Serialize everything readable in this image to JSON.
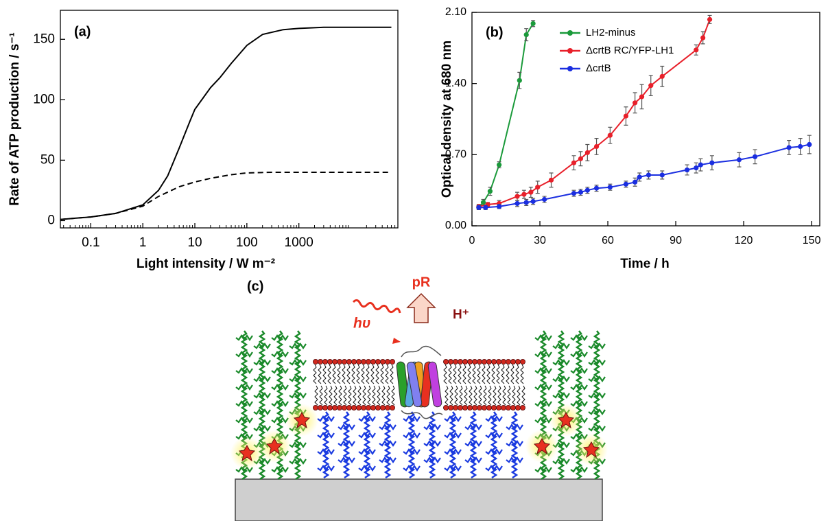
{
  "chart_data": [
    {
      "type": "line",
      "panel_label": "(a)",
      "x_label": "Light intensity / W m⁻²",
      "y_label": "Rate of ATP production / s⁻¹",
      "xscale": "log",
      "xlim": [
        0.026,
        80000
      ],
      "ylim": [
        -6,
        174
      ],
      "xticks": [
        0.1,
        1,
        10,
        100,
        1000
      ],
      "yticks": [
        0,
        50,
        100,
        150
      ],
      "series": [
        {
          "color": "#000000",
          "dash": false,
          "x": [
            0.026,
            0.05,
            0.1,
            0.3,
            1,
            2,
            3,
            5,
            8,
            10,
            20,
            30,
            50,
            100,
            200,
            500,
            1000,
            3000,
            10000,
            60000
          ],
          "values": [
            1,
            2,
            3,
            6,
            13,
            25,
            37,
            60,
            82,
            92,
            110,
            118,
            130,
            145,
            154,
            158,
            159,
            160,
            160,
            160
          ]
        },
        {
          "color": "#000000",
          "dash": true,
          "x": [
            0.026,
            0.05,
            0.1,
            0.3,
            1,
            2,
            5,
            10,
            20,
            50,
            100,
            300,
            1000,
            10000,
            60000
          ],
          "values": [
            1,
            2,
            3,
            6,
            12,
            20,
            28,
            32,
            35,
            38,
            39.5,
            40,
            40,
            40,
            40
          ]
        }
      ]
    },
    {
      "type": "line",
      "panel_label": "(b)",
      "x_label": "Time / h",
      "y_label": "Optical density at 680 nm",
      "legend": "upper left",
      "xlim": [
        0,
        153.6
      ],
      "ylim": [
        0,
        2.1
      ],
      "xticks": [
        0,
        30,
        60,
        90,
        120,
        150
      ],
      "yticks": [
        {
          "value": 0,
          "label": "0.00"
        },
        {
          "value": 0.7,
          "label": "0.70"
        },
        {
          "value": 1.4,
          "label": "1.40"
        },
        {
          "value": 2.1,
          "label": "2.10"
        }
      ],
      "series": [
        {
          "name": "LH2-minus",
          "color": "#1a9a3a",
          "x": [
            3,
            5,
            8,
            12,
            21,
            24,
            27
          ],
          "values": [
            0.18,
            0.23,
            0.34,
            0.6,
            1.43,
            1.88,
            1.99
          ],
          "errors": [
            0.02,
            0.03,
            0.04,
            0.03,
            0.08,
            0.06,
            0.03
          ]
        },
        {
          "name": "ΔcrtB RC/YFP-LH1",
          "color": "#e8202a",
          "x": [
            3,
            7,
            12,
            20,
            23,
            26,
            29,
            35,
            45,
            48,
            51,
            55,
            61,
            68,
            72,
            75,
            79,
            84,
            99,
            102,
            105
          ],
          "values": [
            0.19,
            0.21,
            0.22,
            0.29,
            0.31,
            0.33,
            0.38,
            0.45,
            0.62,
            0.66,
            0.72,
            0.78,
            0.89,
            1.08,
            1.21,
            1.27,
            1.38,
            1.47,
            1.73,
            1.85,
            2.03
          ],
          "errors": [
            0.02,
            0.02,
            0.03,
            0.04,
            0.04,
            0.05,
            0.06,
            0.07,
            0.07,
            0.07,
            0.08,
            0.08,
            0.08,
            0.09,
            0.1,
            0.12,
            0.1,
            0.1,
            0.05,
            0.06,
            0.04
          ]
        },
        {
          "name": "ΔcrtB",
          "color": "#1a2ee0",
          "x": [
            3,
            6,
            12,
            20,
            24,
            27,
            32,
            45,
            48,
            51,
            55,
            61,
            68,
            72,
            74,
            78,
            84,
            95,
            99,
            101,
            106,
            118,
            125,
            140,
            145,
            149
          ],
          "values": [
            0.18,
            0.18,
            0.19,
            0.22,
            0.23,
            0.24,
            0.26,
            0.32,
            0.33,
            0.35,
            0.37,
            0.38,
            0.41,
            0.43,
            0.48,
            0.5,
            0.5,
            0.55,
            0.57,
            0.6,
            0.62,
            0.65,
            0.68,
            0.77,
            0.78,
            0.8
          ],
          "errors": [
            0.02,
            0.02,
            0.02,
            0.03,
            0.03,
            0.03,
            0.03,
            0.03,
            0.03,
            0.03,
            0.03,
            0.03,
            0.03,
            0.04,
            0.04,
            0.04,
            0.04,
            0.05,
            0.05,
            0.06,
            0.07,
            0.07,
            0.07,
            0.07,
            0.08,
            0.09
          ]
        }
      ]
    }
  ],
  "diagram": {
    "panel_label": "(c)",
    "protein": "pR",
    "light": "hυ",
    "proton": "H⁺"
  }
}
